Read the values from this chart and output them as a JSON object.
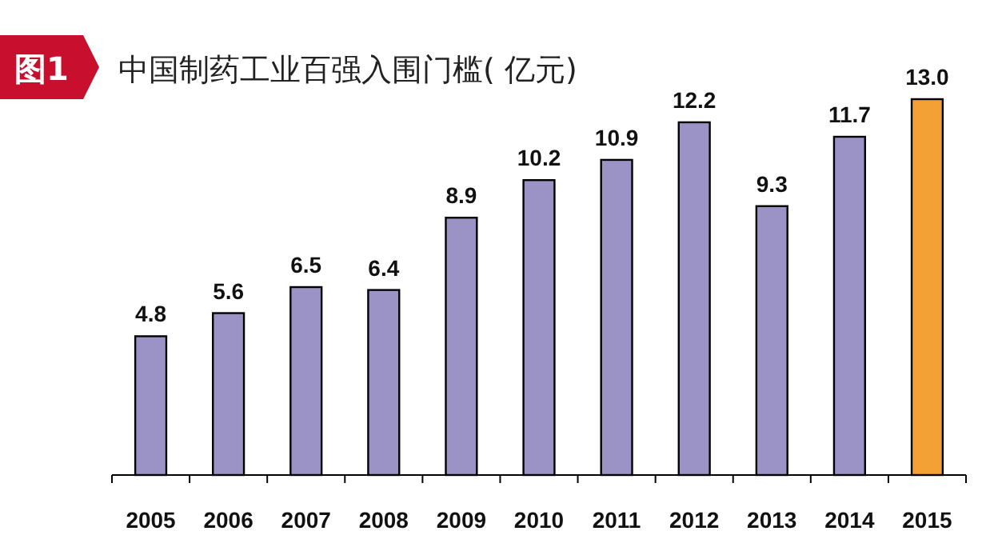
{
  "chart_data": {
    "type": "bar",
    "title": "中国制药工业百强入围门槛( 亿元)",
    "annotations": [
      "图1"
    ],
    "categories": [
      "2005",
      "2006",
      "2007",
      "2008",
      "2009",
      "2010",
      "2011",
      "2012",
      "2013",
      "2014",
      "2015"
    ],
    "values": [
      4.8,
      5.6,
      6.5,
      6.4,
      8.9,
      10.2,
      10.9,
      12.2,
      9.3,
      11.7,
      13.0
    ],
    "colors": [
      "#9b93c6",
      "#9b93c6",
      "#9b93c6",
      "#9b93c6",
      "#9b93c6",
      "#9b93c6",
      "#9b93c6",
      "#9b93c6",
      "#9b93c6",
      "#9b93c6",
      "#f3a135"
    ],
    "value_labels": [
      "4.8",
      "5.6",
      "6.5",
      "6.4",
      "8.9",
      "10.2",
      "10.9",
      "12.2",
      "9.3",
      "11.7",
      "13.0"
    ]
  }
}
